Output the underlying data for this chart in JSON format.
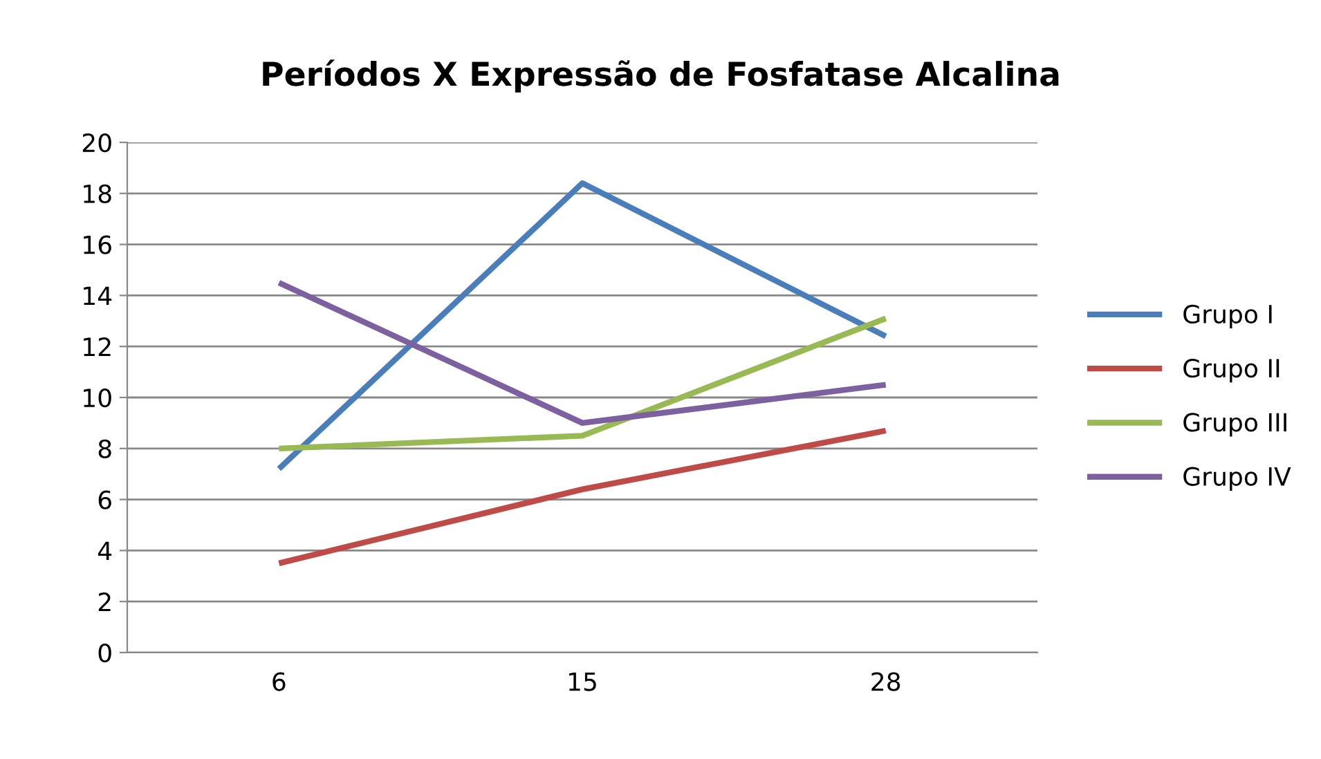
{
  "chart_data": {
    "type": "line",
    "title": "Períodos X Expressão de Fosfatase Alcalina",
    "categories": [
      "6",
      "15",
      "28"
    ],
    "series": [
      {
        "name": "Grupo I",
        "color": "#4a7ebb",
        "values": [
          7.2,
          18.4,
          12.4
        ]
      },
      {
        "name": "Grupo II",
        "color": "#be4b48",
        "values": [
          3.5,
          6.4,
          8.7
        ]
      },
      {
        "name": "Grupo III",
        "color": "#98b954",
        "values": [
          8.0,
          8.5,
          13.1
        ]
      },
      {
        "name": "Grupo IV",
        "color": "#7d60a0",
        "values": [
          14.5,
          9.0,
          10.5
        ]
      }
    ],
    "ylim": [
      0,
      20
    ],
    "yticks": [
      0,
      2,
      4,
      6,
      8,
      10,
      12,
      14,
      16,
      18,
      20
    ],
    "grid": "y",
    "legend": "right",
    "marker": "none",
    "line_style": "solid"
  }
}
